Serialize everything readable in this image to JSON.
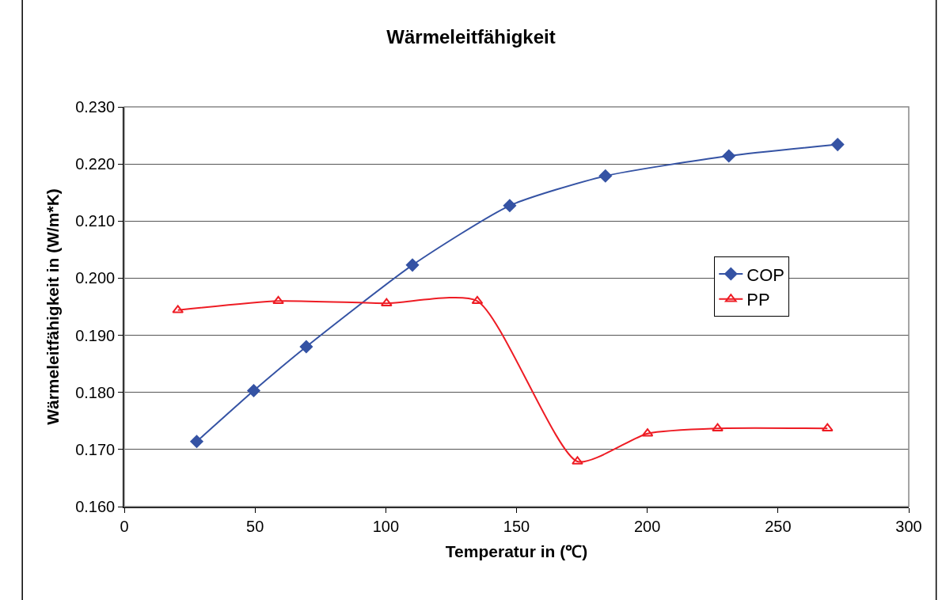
{
  "chart_data": {
    "type": "line",
    "title": "Wärmeleitfähigkeit",
    "xlabel": "Temperatur in (℃)",
    "ylabel": "Wärmeleitfähigkeit in (W/m*K)",
    "series": [
      {
        "name": "COP",
        "color": "#3553a4",
        "marker": "diamond",
        "x": [
          27.7,
          49.5,
          69.6,
          110.2,
          147.4,
          184.0,
          231.2,
          272.8
        ],
        "values": [
          0.1714,
          0.1803,
          0.188,
          0.2023,
          0.2127,
          0.2179,
          0.2214,
          0.2234
        ]
      },
      {
        "name": "PP",
        "color": "#ee1c24",
        "marker": "triangle",
        "x": [
          20.5,
          58.9,
          100.3,
          135.0,
          173.3,
          200.1,
          226.9,
          268.9
        ],
        "values": [
          0.1944,
          0.196,
          0.1956,
          0.196,
          0.1679,
          0.1728,
          0.1737,
          0.1737
        ]
      }
    ],
    "xlim": [
      0,
      300
    ],
    "xticks": [
      0,
      50,
      100,
      150,
      200,
      250,
      300
    ],
    "ylim": [
      0.16,
      0.23
    ],
    "yticks": [
      {
        "value": 0.16,
        "label": "0.160"
      },
      {
        "value": 0.17,
        "label": "0.170"
      },
      {
        "value": 0.18,
        "label": "0.180"
      },
      {
        "value": 0.19,
        "label": "0.190"
      },
      {
        "value": 0.2,
        "label": "0.200"
      },
      {
        "value": 0.21,
        "label": "0.210"
      },
      {
        "value": 0.22,
        "label": "0.220"
      },
      {
        "value": 0.23,
        "label": "0.230"
      }
    ],
    "grid": "y",
    "legend": "right",
    "line_style": "solid"
  }
}
